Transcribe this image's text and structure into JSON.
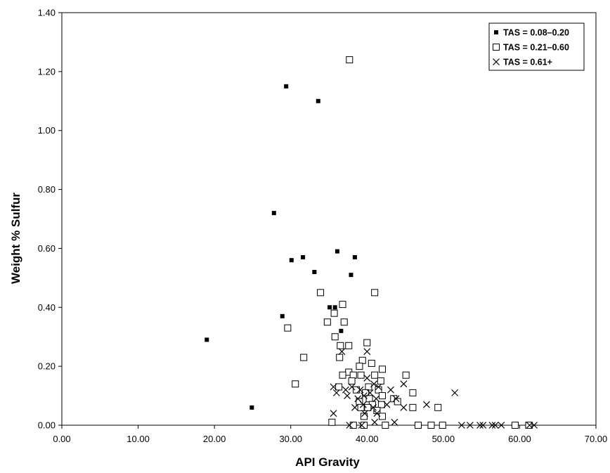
{
  "chart_data": {
    "type": "scatter",
    "xlabel": "API Gravity",
    "ylabel": "Weight % Sulfur",
    "xlim": [
      0,
      70
    ],
    "ylim": [
      0,
      1.4
    ],
    "x_ticks": [
      "0.00",
      "10.00",
      "20.00",
      "30.00",
      "40.00",
      "50.00",
      "60.00",
      "70.00"
    ],
    "y_ticks": [
      "0.00",
      "0.20",
      "0.40",
      "0.60",
      "0.80",
      "1.00",
      "1.20",
      "1.40"
    ],
    "grid": false,
    "legend_position": "top-right",
    "series": [
      {
        "name": "TAS = 0.08–0.20",
        "marker": "filled-square",
        "points": [
          [
            19.0,
            0.29
          ],
          [
            24.9,
            0.06
          ],
          [
            27.8,
            0.72
          ],
          [
            28.9,
            0.37
          ],
          [
            29.4,
            1.15
          ],
          [
            30.1,
            0.56
          ],
          [
            31.6,
            0.57
          ],
          [
            33.1,
            0.52
          ],
          [
            33.6,
            1.1
          ],
          [
            35.1,
            0.4
          ],
          [
            35.8,
            0.4
          ],
          [
            36.1,
            0.59
          ],
          [
            36.6,
            0.32
          ],
          [
            37.9,
            0.51
          ],
          [
            38.4,
            0.57
          ]
        ]
      },
      {
        "name": "TAS = 0.21–0.60",
        "marker": "open-square",
        "points": [
          [
            37.7,
            1.24
          ],
          [
            41.0,
            0.45
          ],
          [
            33.9,
            0.45
          ],
          [
            36.8,
            0.41
          ],
          [
            35.7,
            0.38
          ],
          [
            34.8,
            0.35
          ],
          [
            37.0,
            0.35
          ],
          [
            29.6,
            0.33
          ],
          [
            35.8,
            0.3
          ],
          [
            31.7,
            0.23
          ],
          [
            30.6,
            0.14
          ],
          [
            36.5,
            0.27
          ],
          [
            37.6,
            0.27
          ],
          [
            40.0,
            0.28
          ],
          [
            36.4,
            0.23
          ],
          [
            39.4,
            0.22
          ],
          [
            40.6,
            0.21
          ],
          [
            39.0,
            0.2
          ],
          [
            42.0,
            0.19
          ],
          [
            37.6,
            0.18
          ],
          [
            36.8,
            0.17
          ],
          [
            38.2,
            0.17
          ],
          [
            39.2,
            0.17
          ],
          [
            41.0,
            0.17
          ],
          [
            45.1,
            0.17
          ],
          [
            38.0,
            0.15
          ],
          [
            40.2,
            0.13
          ],
          [
            41.8,
            0.15
          ],
          [
            36.3,
            0.13
          ],
          [
            38.6,
            0.12
          ],
          [
            39.8,
            0.11
          ],
          [
            41.5,
            0.12
          ],
          [
            40.3,
            0.09
          ],
          [
            42.0,
            0.1
          ],
          [
            43.5,
            0.09
          ],
          [
            39.0,
            0.08
          ],
          [
            40.7,
            0.07
          ],
          [
            41.9,
            0.07
          ],
          [
            39.2,
            0.06
          ],
          [
            40.1,
            0.06
          ],
          [
            41.3,
            0.05
          ],
          [
            44.0,
            0.08
          ],
          [
            46.0,
            0.11
          ],
          [
            46.0,
            0.06
          ],
          [
            49.3,
            0.06
          ],
          [
            42.0,
            0.03
          ],
          [
            39.6,
            0.03
          ],
          [
            35.4,
            0.01
          ],
          [
            38.2,
            0.0
          ],
          [
            39.6,
            0.0
          ],
          [
            42.4,
            0.0
          ],
          [
            46.7,
            0.0
          ],
          [
            48.4,
            0.0
          ],
          [
            49.9,
            0.0
          ],
          [
            59.4,
            0.0
          ],
          [
            61.2,
            0.0
          ]
        ]
      },
      {
        "name": "TAS = 0.61+",
        "marker": "x",
        "points": [
          [
            40.0,
            0.25
          ],
          [
            36.7,
            0.25
          ],
          [
            44.8,
            0.14
          ],
          [
            51.5,
            0.11
          ],
          [
            35.6,
            0.13
          ],
          [
            36.0,
            0.11
          ],
          [
            37.2,
            0.12
          ],
          [
            38.0,
            0.13
          ],
          [
            39.1,
            0.12
          ],
          [
            40.4,
            0.11
          ],
          [
            41.5,
            0.13
          ],
          [
            43.1,
            0.12
          ],
          [
            37.4,
            0.1
          ],
          [
            38.8,
            0.09
          ],
          [
            39.6,
            0.1
          ],
          [
            41.2,
            0.09
          ],
          [
            42.6,
            0.07
          ],
          [
            40.0,
            0.16
          ],
          [
            40.9,
            0.14
          ],
          [
            39.5,
            0.07
          ],
          [
            38.4,
            0.06
          ],
          [
            40.8,
            0.06
          ],
          [
            41.3,
            0.04
          ],
          [
            43.8,
            0.09
          ],
          [
            47.8,
            0.07
          ],
          [
            44.8,
            0.06
          ],
          [
            35.6,
            0.04
          ],
          [
            39.7,
            0.04
          ],
          [
            43.6,
            0.01
          ],
          [
            41.0,
            0.01
          ],
          [
            37.7,
            0.0
          ],
          [
            39.3,
            0.0
          ],
          [
            52.4,
            0.0
          ],
          [
            53.5,
            0.0
          ],
          [
            54.8,
            0.0
          ],
          [
            55.2,
            0.0
          ],
          [
            56.4,
            0.0
          ],
          [
            56.8,
            0.0
          ],
          [
            57.6,
            0.0
          ],
          [
            61.3,
            0.0
          ],
          [
            61.9,
            0.0
          ]
        ]
      }
    ]
  }
}
